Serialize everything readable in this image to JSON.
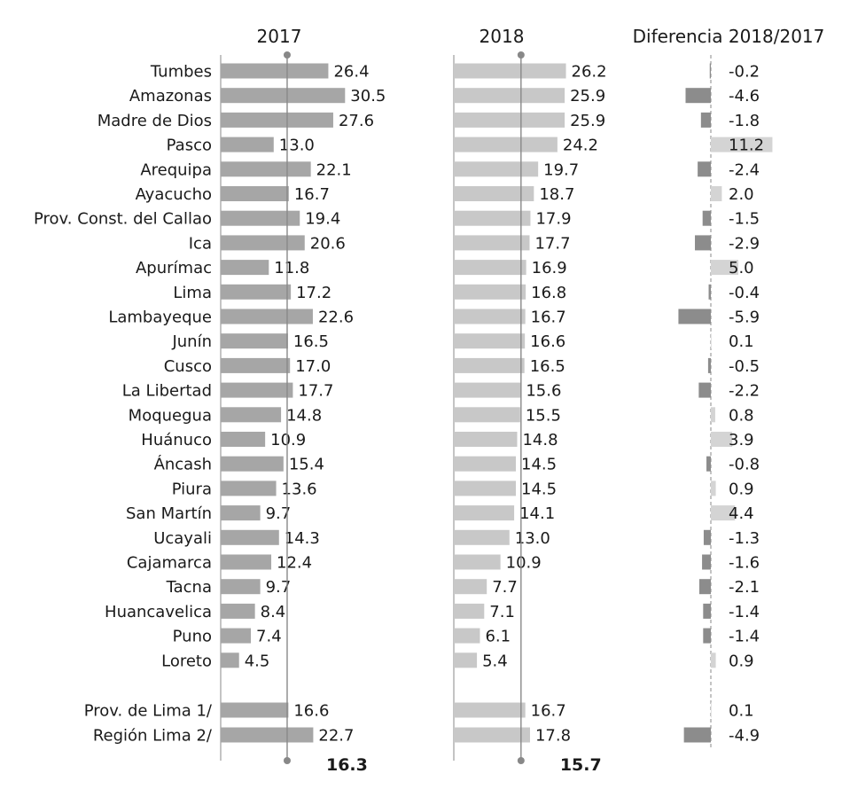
{
  "chart_data": {
    "type": "bar",
    "headers": [
      "2017",
      "2018",
      "Diferencia 2018/2017"
    ],
    "categories": [
      "Tumbes",
      "Amazonas",
      "Madre de Dios",
      "Pasco",
      "Arequipa",
      "Ayacucho",
      "Prov. Const. del Callao",
      "Ica",
      "Apurímac",
      "Lima",
      "Lambayeque",
      "Junín",
      "Cusco",
      "La Libertad",
      "Moquegua",
      "Huánuco",
      "Áncash",
      "Piura",
      "San Martín",
      "Ucayali",
      "Cajamarca",
      "Tacna",
      "Huancavelica",
      "Puno",
      "Loreto"
    ],
    "extra_categories": [
      "Prov. de Lima 1/",
      "Región Lima 2/"
    ],
    "series": [
      {
        "values": [
          26.4,
          30.5,
          27.6,
          13.0,
          22.1,
          16.7,
          19.4,
          20.6,
          11.8,
          17.2,
          22.6,
          16.5,
          17.0,
          17.7,
          14.8,
          10.9,
          15.4,
          13.6,
          9.7,
          14.3,
          12.4,
          9.7,
          8.4,
          7.4,
          4.5
        ],
        "labels": [
          "26.4",
          "30.5",
          "27.6",
          "13.0",
          "22.1",
          "16.7",
          "19.4",
          "20.6",
          "11.8",
          "17.2",
          "22.6",
          "16.5",
          "17.0",
          "17.7",
          "14.8",
          "10.9",
          "15.4",
          "13.6",
          "9.7",
          "14.3",
          "12.4",
          "9.7",
          "8.4",
          "7.4",
          "4.5"
        ],
        "extra_values": [
          16.6,
          22.7
        ],
        "extra_labels": [
          "16.6",
          "22.7"
        ],
        "average": 16.3,
        "average_label": "16.3",
        "color": "#a6a6a6"
      },
      {
        "values": [
          26.2,
          25.9,
          25.9,
          24.2,
          19.7,
          18.7,
          17.9,
          17.7,
          16.9,
          16.8,
          16.7,
          16.6,
          16.5,
          15.6,
          15.5,
          14.8,
          14.5,
          14.5,
          14.1,
          13.0,
          10.9,
          7.7,
          7.1,
          6.1,
          5.4
        ],
        "labels": [
          "26.2",
          "25.9",
          "25.9",
          "24.2",
          "19.7",
          "18.7",
          "17.9",
          "17.7",
          "16.9",
          "16.8",
          "16.7",
          "16.6",
          "16.5",
          "15.6",
          "15.5",
          "14.8",
          "14.5",
          "14.5",
          "14.1",
          "13.0",
          "10.9",
          "7.7",
          "7.1",
          "6.1",
          "5.4"
        ],
        "extra_values": [
          16.7,
          17.8
        ],
        "extra_labels": [
          "16.7",
          "17.8"
        ],
        "average": 15.7,
        "average_label": "15.7",
        "color": "#c8c8c8"
      },
      {
        "values": [
          -0.2,
          -4.6,
          -1.8,
          11.2,
          -2.4,
          2.0,
          -1.5,
          -2.9,
          5.0,
          -0.4,
          -5.9,
          0.1,
          -0.5,
          -2.2,
          0.8,
          3.9,
          -0.8,
          0.9,
          4.4,
          -1.3,
          -1.6,
          -2.1,
          -1.4,
          -1.4,
          0.9
        ],
        "labels": [
          "-0.2",
          "-4.6",
          "-1.8",
          "11.2",
          "-2.4",
          "2.0",
          "-1.5",
          "-2.9",
          "5.0",
          "-0.4",
          "-5.9",
          "0.1",
          "-0.5",
          "-2.2",
          "0.8",
          "3.9",
          "-0.8",
          "0.9",
          "4.4",
          "-1.3",
          "-1.6",
          "-2.1",
          "-1.4",
          "-1.4",
          "0.9"
        ],
        "extra_values": [
          0.1,
          -4.9
        ],
        "extra_labels": [
          "0.1",
          "-4.9"
        ],
        "color_negative": "#8c8c8c",
        "color_positive": "#d4d4d4"
      }
    ],
    "axis_color": "#888888"
  }
}
